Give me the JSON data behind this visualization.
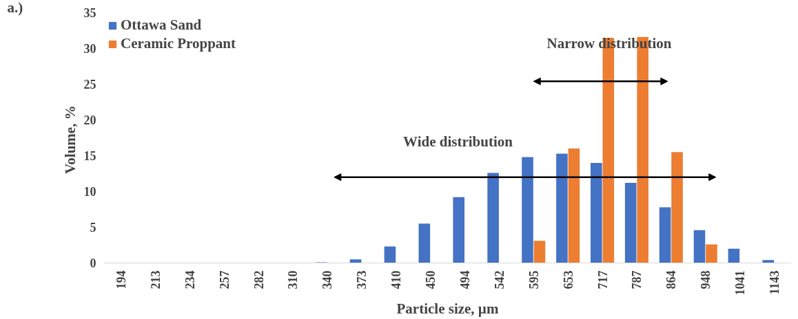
{
  "chart_data": {
    "type": "bar",
    "xlabel": "Particle size, µm",
    "ylabel": "Volume,  %",
    "categories": [
      "194",
      "213",
      "234",
      "257",
      "282",
      "310",
      "340",
      "373",
      "410",
      "450",
      "494",
      "542",
      "595",
      "653",
      "717",
      "787",
      "864",
      "948",
      "1041",
      "1143"
    ],
    "series": [
      {
        "name": "Ottawa Sand",
        "color": "#4472c4",
        "values": [
          0,
          0,
          0,
          0,
          0,
          0,
          0.1,
          0.5,
          2.3,
          5.5,
          9.2,
          12.6,
          14.8,
          15.3,
          14.0,
          11.2,
          7.8,
          4.6,
          2.0,
          0.4
        ]
      },
      {
        "name": "Ceramic Proppant",
        "color": "#ed7d31",
        "values": [
          0,
          0,
          0,
          0,
          0,
          0,
          0,
          0,
          0,
          0,
          0,
          0,
          3.1,
          16.0,
          31.5,
          31.6,
          15.5,
          2.6,
          0,
          0
        ]
      }
    ],
    "ylim": [
      0,
      35
    ],
    "yticks": [
      0,
      5,
      10,
      15,
      20,
      25,
      30,
      35
    ],
    "grid": false,
    "legend": "top left",
    "annotations": [
      "a.)",
      "Narrow distribution",
      "Wide distribution"
    ]
  }
}
